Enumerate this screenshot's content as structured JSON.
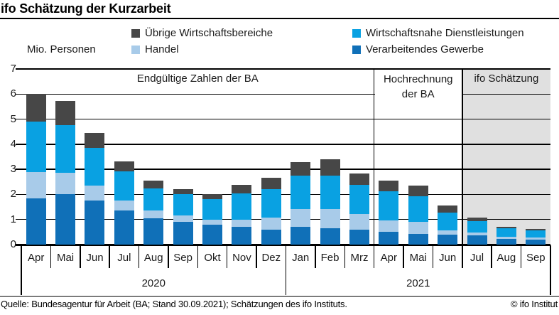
{
  "title": "ifo Schätzung der Kurzarbeit",
  "axis_unit_label": "Mio. Personen",
  "legend": [
    {
      "label": "Übrige Wirtschaftsbereiche",
      "color": "#474747"
    },
    {
      "label": "Wirtschaftsnahe Dienstleistungen",
      "color": "#09a1e2"
    },
    {
      "label": "Handel",
      "color": "#a8cbe9"
    },
    {
      "label": "Verarbeitendes Gewerbe",
      "color": "#1070b8"
    }
  ],
  "chart_data": {
    "type": "bar",
    "stacked": true,
    "title": "ifo Schätzung der Kurzarbeit",
    "ylabel": "Mio. Personen",
    "ylim": [
      0,
      7
    ],
    "yticks": [
      0,
      1,
      2,
      3,
      4,
      5,
      6,
      7
    ],
    "grid": true,
    "legend_position": "top",
    "categories": [
      "Apr",
      "Mai",
      "Jun",
      "Jul",
      "Aug",
      "Sep",
      "Okt",
      "Nov",
      "Dez",
      "Jan",
      "Feb",
      "Mrz",
      "Apr",
      "Mai",
      "Jun",
      "Jul",
      "Aug",
      "Sep"
    ],
    "years": [
      {
        "label": "2020",
        "months": 9
      },
      {
        "label": "2021",
        "months": 9
      }
    ],
    "series": [
      {
        "name": "Verarbeitendes Gewerbe",
        "color": "#1070b8",
        "values": [
          1.85,
          2.0,
          1.75,
          1.35,
          1.05,
          0.9,
          0.8,
          0.7,
          0.6,
          0.7,
          0.65,
          0.6,
          0.5,
          0.42,
          0.4,
          0.38,
          0.22,
          0.2
        ]
      },
      {
        "name": "Handel",
        "color": "#a8cbe9",
        "values": [
          1.05,
          0.85,
          0.6,
          0.4,
          0.3,
          0.27,
          0.2,
          0.28,
          0.47,
          0.72,
          0.77,
          0.61,
          0.47,
          0.5,
          0.18,
          0.1,
          0.08,
          0.07
        ]
      },
      {
        "name": "Wirtschaftsnahe Dienstleistungen",
        "color": "#09a1e2",
        "values": [
          2.0,
          1.9,
          1.5,
          1.17,
          0.9,
          0.85,
          0.8,
          1.06,
          1.14,
          1.32,
          1.34,
          1.17,
          1.16,
          1.02,
          0.7,
          0.45,
          0.35,
          0.3
        ]
      },
      {
        "name": "Übrige Wirtschaftsbereiche",
        "color": "#474747",
        "values": [
          1.1,
          0.97,
          0.6,
          0.4,
          0.3,
          0.19,
          0.2,
          0.35,
          0.45,
          0.54,
          0.64,
          0.45,
          0.42,
          0.42,
          0.27,
          0.15,
          0.07,
          0.04
        ]
      }
    ],
    "regions": [
      {
        "label": "Endgültige Zahlen der BA",
        "months": 12,
        "shaded": false,
        "masked_label": false
      },
      {
        "label": "Hochrechnung der BA",
        "months": 3,
        "shaded": false,
        "masked_label": true
      },
      {
        "label": "ifo Schätzung",
        "months": 3,
        "shaded": true,
        "masked_label": false
      }
    ],
    "shade_color": "#e0e0e0"
  },
  "footer": {
    "source": "Quelle: Bundesagentur für Arbeit (BA; Stand 30.09.2021); Schätzungen des ifo Instituts.",
    "copyright": "© ifo Institut"
  }
}
